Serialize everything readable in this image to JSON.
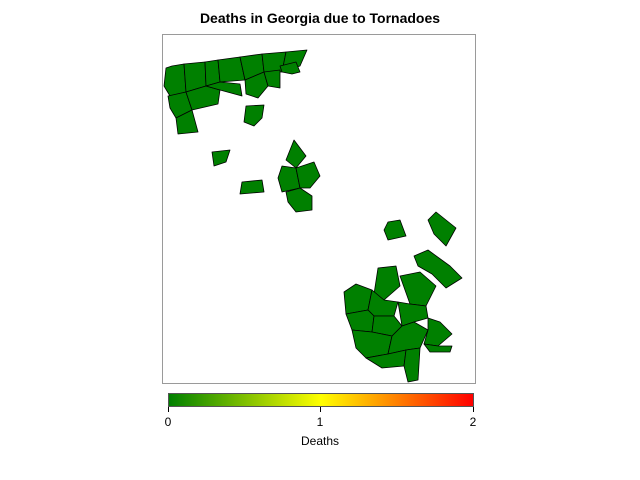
{
  "title": "Deaths in Georgia due to Tornadoes",
  "legend": {
    "title": "Deaths",
    "min": 0,
    "max": 2,
    "ticks": [
      "0",
      "1",
      "2"
    ],
    "colors": [
      "#008000",
      "#ffff00",
      "#ff0000"
    ]
  },
  "region_style": {
    "fill": "#008000",
    "stroke": "#000000",
    "value": 0
  }
}
